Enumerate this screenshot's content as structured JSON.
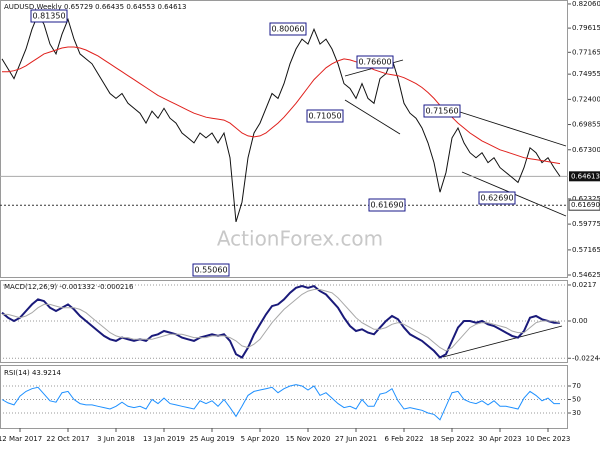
{
  "chart_data": [
    {
      "type": "line",
      "title": "AUDUSD,Weekly  0.65729 0.66435 0.64553 0.64613",
      "ylim": [
        0.5432,
        0.8246
      ],
      "yticks": [
        {
          "value": 0.8206,
          "label": "0.82060"
        },
        0.79615,
        0.77165,
        0.74955,
        {
          "value": 0.724,
          "label": "0.72400"
        },
        0.69855,
        {
          "value": 0.673,
          "label": "0.67300"
        },
        0.62325,
        0.59775,
        0.57165,
        0.54625
      ],
      "current_price": 0.64613,
      "level": {
        "value": 0.6169,
        "label": "0.61690"
      },
      "annotations": [
        "0.81350",
        "0.80060",
        "0.76600",
        "0.71050",
        "0.71560",
        "0.61690",
        "0.62690",
        "0.55060"
      ],
      "watermark": "ActionForex.com",
      "series": [
        {
          "color": "#111111",
          "values": [
            0.765,
            0.755,
            0.745,
            0.76,
            0.775,
            0.795,
            0.81,
            0.8,
            0.78,
            0.77,
            0.79,
            0.805,
            0.785,
            0.77,
            0.765,
            0.76,
            0.75,
            0.74,
            0.73,
            0.725,
            0.73,
            0.72,
            0.715,
            0.71,
            0.7,
            0.712,
            0.705,
            0.715,
            0.705,
            0.7,
            0.69,
            0.685,
            0.68,
            0.69,
            0.685,
            0.69,
            0.68,
            0.69,
            0.665,
            0.6,
            0.62,
            0.665,
            0.69,
            0.7,
            0.715,
            0.73,
            0.725,
            0.74,
            0.76,
            0.775,
            0.785,
            0.78,
            0.795,
            0.78,
            0.785,
            0.775,
            0.76,
            0.74,
            0.735,
            0.725,
            0.74,
            0.725,
            0.72,
            0.745,
            0.75,
            0.765,
            0.745,
            0.72,
            0.71,
            0.705,
            0.695,
            0.68,
            0.66,
            0.63,
            0.65,
            0.685,
            0.695,
            0.68,
            0.67,
            0.665,
            0.67,
            0.66,
            0.665,
            0.655,
            0.65,
            0.645,
            0.64,
            0.655,
            0.675,
            0.67,
            0.66,
            0.665,
            0.655,
            0.646
          ]
        },
        {
          "color": "#e0201c",
          "values": [
            0.752,
            0.752,
            0.753,
            0.755,
            0.758,
            0.762,
            0.766,
            0.77,
            0.772,
            0.774,
            0.776,
            0.777,
            0.777,
            0.776,
            0.774,
            0.771,
            0.768,
            0.764,
            0.76,
            0.756,
            0.752,
            0.748,
            0.744,
            0.74,
            0.736,
            0.732,
            0.728,
            0.725,
            0.722,
            0.719,
            0.716,
            0.713,
            0.71,
            0.708,
            0.706,
            0.705,
            0.704,
            0.703,
            0.7,
            0.695,
            0.69,
            0.687,
            0.686,
            0.687,
            0.69,
            0.695,
            0.7,
            0.706,
            0.713,
            0.72,
            0.728,
            0.736,
            0.744,
            0.75,
            0.756,
            0.76,
            0.763,
            0.765,
            0.764,
            0.762,
            0.76,
            0.757,
            0.754,
            0.752,
            0.75,
            0.749,
            0.748,
            0.746,
            0.743,
            0.74,
            0.736,
            0.731,
            0.725,
            0.718,
            0.712,
            0.706,
            0.7,
            0.695,
            0.69,
            0.686,
            0.682,
            0.679,
            0.676,
            0.673,
            0.671,
            0.669,
            0.667,
            0.665,
            0.664,
            0.663,
            0.662,
            0.661,
            0.66,
            0.659
          ]
        }
      ]
    },
    {
      "type": "line",
      "title": "MACD(12,26,9) -0.001332 -0.000216",
      "ylim": [
        -0.0253,
        0.0247
      ],
      "yticks": [
        0.0217,
        {
          "value": 0,
          "label": "0.00"
        },
        -0.022445
      ],
      "series": [
        {
          "color": "#1a1a7a",
          "values": [
            0.005,
            0.002,
            0.0,
            0.002,
            0.006,
            0.01,
            0.013,
            0.012,
            0.008,
            0.006,
            0.008,
            0.01,
            0.007,
            0.003,
            0.0,
            -0.003,
            -0.006,
            -0.009,
            -0.011,
            -0.012,
            -0.01,
            -0.011,
            -0.012,
            -0.011,
            -0.012,
            -0.009,
            -0.008,
            -0.006,
            -0.007,
            -0.008,
            -0.01,
            -0.011,
            -0.012,
            -0.01,
            -0.009,
            -0.008,
            -0.009,
            -0.008,
            -0.012,
            -0.02,
            -0.022,
            -0.016,
            -0.008,
            -0.002,
            0.004,
            0.009,
            0.01,
            0.013,
            0.017,
            0.02,
            0.021,
            0.02,
            0.021,
            0.018,
            0.016,
            0.012,
            0.008,
            0.002,
            -0.003,
            -0.006,
            -0.005,
            -0.007,
            -0.008,
            -0.004,
            0.0,
            0.003,
            0.001,
            -0.004,
            -0.008,
            -0.01,
            -0.012,
            -0.015,
            -0.018,
            -0.022,
            -0.02,
            -0.012,
            -0.004,
            0.0,
            0.0,
            -0.001,
            0.0,
            -0.002,
            -0.003,
            -0.005,
            -0.007,
            -0.009,
            -0.01,
            -0.006,
            0.002,
            0.003,
            0.001,
            0.0,
            -0.001,
            -0.001
          ]
        },
        {
          "color": "#a8a8a8",
          "values": [
            0.004,
            0.004,
            0.003,
            0.002,
            0.003,
            0.005,
            0.008,
            0.01,
            0.01,
            0.009,
            0.008,
            0.008,
            0.008,
            0.007,
            0.005,
            0.002,
            -0.001,
            -0.004,
            -0.007,
            -0.009,
            -0.01,
            -0.01,
            -0.011,
            -0.011,
            -0.011,
            -0.011,
            -0.01,
            -0.009,
            -0.008,
            -0.008,
            -0.008,
            -0.009,
            -0.01,
            -0.01,
            -0.01,
            -0.009,
            -0.009,
            -0.009,
            -0.01,
            -0.012,
            -0.015,
            -0.016,
            -0.014,
            -0.011,
            -0.006,
            -0.001,
            0.003,
            0.007,
            0.01,
            0.013,
            0.016,
            0.018,
            0.019,
            0.019,
            0.018,
            0.017,
            0.014,
            0.01,
            0.006,
            0.002,
            -0.001,
            -0.003,
            -0.005,
            -0.005,
            -0.004,
            -0.002,
            -0.001,
            -0.002,
            -0.004,
            -0.006,
            -0.008,
            -0.01,
            -0.013,
            -0.016,
            -0.018,
            -0.016,
            -0.012,
            -0.008,
            -0.004,
            -0.002,
            -0.001,
            -0.001,
            -0.002,
            -0.003,
            -0.004,
            -0.006,
            -0.007,
            -0.007,
            -0.004,
            -0.001,
            0.0,
            0.0,
            0.0,
            -0.001
          ]
        }
      ]
    },
    {
      "type": "line",
      "title": "RSI(14) 43.9214",
      "ylim": [
        7.8,
        99.6
      ],
      "yticks": [
        70,
        50,
        30
      ],
      "categories": [
        null,
        null,
        null,
        "12 Mar 2017",
        null,
        null,
        null,
        null,
        null,
        null,
        null,
        "22 Oct 2017",
        null,
        null,
        null,
        null,
        null,
        null,
        null,
        "3 Jun 2018",
        null,
        null,
        null,
        null,
        null,
        null,
        null,
        "13 Jan 2019",
        null,
        null,
        null,
        null,
        null,
        null,
        null,
        "25 Aug 2019",
        null,
        null,
        null,
        null,
        null,
        null,
        null,
        "5 Apr 2020",
        null,
        null,
        null,
        null,
        null,
        null,
        null,
        "15 Nov 2020",
        null,
        null,
        null,
        null,
        null,
        null,
        null,
        "27 Jun 2021",
        null,
        null,
        null,
        null,
        null,
        null,
        null,
        "6 Feb 2022",
        null,
        null,
        null,
        null,
        null,
        null,
        null,
        "18 Sep 2022",
        null,
        null,
        null,
        null,
        null,
        null,
        null,
        "30 Apr 2023",
        null,
        null,
        null,
        null,
        null,
        null,
        null,
        "10 Dec 2023",
        null,
        null
      ],
      "series": [
        {
          "color": "#1e90ff",
          "values": [
            50,
            45,
            42,
            55,
            62,
            66,
            68,
            58,
            48,
            46,
            60,
            62,
            50,
            44,
            42,
            42,
            40,
            38,
            36,
            40,
            46,
            40,
            38,
            40,
            36,
            50,
            44,
            52,
            44,
            42,
            40,
            38,
            36,
            48,
            44,
            48,
            40,
            50,
            38,
            25,
            40,
            56,
            62,
            64,
            66,
            68,
            60,
            66,
            70,
            72,
            70,
            64,
            70,
            56,
            60,
            52,
            44,
            38,
            40,
            36,
            50,
            40,
            40,
            58,
            60,
            66,
            48,
            36,
            38,
            36,
            34,
            30,
            28,
            20,
            40,
            60,
            62,
            50,
            46,
            44,
            48,
            42,
            48,
            40,
            40,
            38,
            36,
            52,
            62,
            56,
            48,
            52,
            44,
            44
          ]
        }
      ]
    }
  ]
}
